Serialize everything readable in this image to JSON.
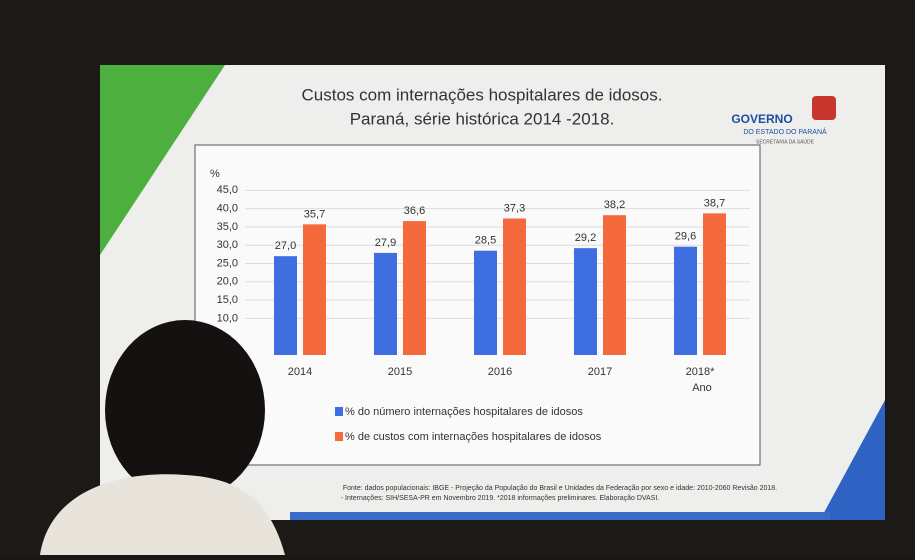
{
  "chart_data": {
    "type": "bar",
    "title": "Custos com internações hospitalares de idosos.",
    "subtitle": "Paraná, série histórica 2014 -2018.",
    "y_label": "%",
    "x_label": "Ano",
    "categories": [
      "2014",
      "2015",
      "2016",
      "2017",
      "2018*"
    ],
    "series": [
      {
        "name": "% do número internações hospitalares de idosos",
        "color": "#3f6ee0",
        "values": [
          27.0,
          27.9,
          28.5,
          29.2,
          29.6
        ],
        "value_labels": [
          "27,0",
          "27,9",
          "28,5",
          "29,2",
          "29,6"
        ]
      },
      {
        "name": "% de custos com internações hospitalares de idosos",
        "color": "#f56a3c",
        "values": [
          35.7,
          36.6,
          37.3,
          38.2,
          38.7
        ],
        "value_labels": [
          "35,7",
          "36,6",
          "37,3",
          "38,2",
          "38,7"
        ]
      }
    ],
    "ylim": [
      0,
      47
    ],
    "yticks": [
      {
        "value": 10,
        "label": "10,0"
      },
      {
        "value": 15,
        "label": "15,0"
      },
      {
        "value": 20,
        "label": "20,0"
      },
      {
        "value": 25,
        "label": "25,0"
      },
      {
        "value": 30,
        "label": "30,0"
      },
      {
        "value": 35,
        "label": "35,0"
      },
      {
        "value": 40,
        "label": "40,0"
      },
      {
        "value": 45,
        "label": "45,0"
      }
    ],
    "grid": true,
    "logo": [
      "GOVERNO",
      "DO ESTADO DO PARANÁ",
      "SECRETARIA DA SAÚDE"
    ],
    "footer": [
      "Fonte: dados populacionais: IBGE - Projeção da População do Brasil e Unidades da Federação por sexo e idade: 2010-2060 Revisão 2018.",
      "- Internações: SIH/SESA-PR em Novembro 2019. *2018 informações preliminares. Elaboração DVASI."
    ]
  }
}
